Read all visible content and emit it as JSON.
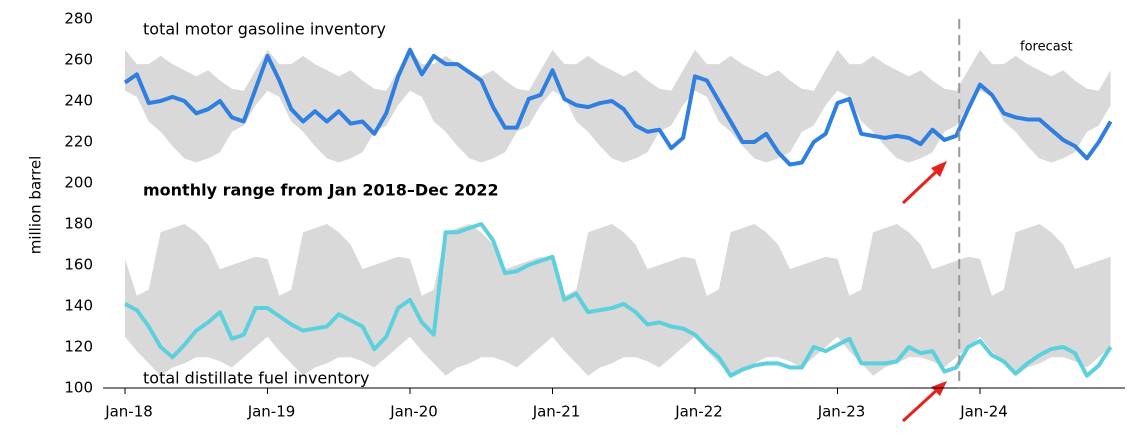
{
  "chart_data": {
    "type": "line",
    "ylabel": "million barrel",
    "ylim": [
      100,
      280
    ],
    "yticks": [
      100,
      120,
      140,
      160,
      180,
      200,
      220,
      240,
      260,
      280
    ],
    "grid": false,
    "categories": [
      "Jan-18",
      null,
      null,
      null,
      null,
      null,
      null,
      null,
      null,
      null,
      null,
      null,
      "Jan-19",
      null,
      null,
      null,
      null,
      null,
      null,
      null,
      null,
      null,
      null,
      null,
      "Jan-20",
      null,
      null,
      null,
      null,
      null,
      null,
      null,
      null,
      null,
      null,
      null,
      "Jan-21",
      null,
      null,
      null,
      null,
      null,
      null,
      null,
      null,
      null,
      null,
      null,
      "Jan-22",
      null,
      null,
      null,
      null,
      null,
      null,
      null,
      null,
      null,
      null,
      null,
      "Jan-23",
      null,
      null,
      null,
      null,
      null,
      null,
      null,
      null,
      null,
      null,
      null,
      "Jan-24",
      null,
      null,
      null,
      null,
      null,
      null,
      null,
      null,
      null,
      null,
      null
    ],
    "series": [
      {
        "name": "total motor gasoline inventory",
        "color": "#2f7fe0",
        "label_color": "#3ab0dc",
        "values": [
          249,
          253,
          239,
          240,
          242,
          240,
          234,
          236,
          240,
          232,
          230,
          246,
          262,
          250,
          236,
          230,
          235,
          230,
          235,
          229,
          230,
          224,
          234,
          252,
          265,
          253,
          262,
          258,
          258,
          254,
          250,
          237,
          227,
          227,
          241,
          243,
          255,
          241,
          238,
          237,
          239,
          240,
          236,
          228,
          225,
          226,
          217,
          222,
          252,
          250,
          240,
          230,
          220,
          220,
          224,
          215,
          209,
          210,
          220,
          224,
          239,
          241,
          224,
          223,
          222,
          223,
          222,
          219,
          226,
          221,
          223,
          236,
          248,
          243,
          234,
          232,
          231,
          231,
          226,
          221,
          218,
          212,
          220,
          230
        ]
      },
      {
        "name": "total distillate fuel inventory",
        "color": "#5dd0de",
        "label_color": "#5dd0de",
        "values": [
          141,
          138,
          130,
          120,
          115,
          121,
          128,
          132,
          137,
          124,
          126,
          139,
          139,
          135,
          131,
          128,
          129,
          130,
          136,
          133,
          130,
          119,
          125,
          139,
          143,
          132,
          126,
          176,
          176,
          178,
          180,
          172,
          156,
          157,
          160,
          162,
          164,
          143,
          146,
          137,
          138,
          139,
          141,
          137,
          131,
          132,
          130,
          129,
          126,
          120,
          115,
          106,
          109,
          111,
          112,
          112,
          110,
          110,
          120,
          118,
          121,
          124,
          112,
          112,
          112,
          113,
          120,
          117,
          118,
          108,
          110,
          120,
          123,
          116,
          113,
          107,
          112,
          116,
          119,
          120,
          117,
          106,
          111,
          120
        ]
      }
    ],
    "range": {
      "label": "monthly range from Jan 2018–Dec 2022",
      "color": "#d9d9d9",
      "bands": [
        {
          "high": [
            265,
            258,
            258,
            262,
            258,
            255,
            252,
            255,
            250,
            246,
            245,
            255
          ],
          "low": [
            245,
            242,
            230,
            225,
            218,
            212,
            210,
            212,
            215,
            225,
            228,
            238
          ]
        },
        {
          "high": [
            163,
            145,
            148,
            176,
            178,
            180,
            176,
            170,
            158,
            160,
            162,
            164
          ],
          "low": [
            125,
            118,
            112,
            106,
            110,
            112,
            115,
            115,
            113,
            110,
            115,
            120
          ]
        }
      ]
    },
    "annotation": {
      "text": "forecast",
      "x": 70
    }
  }
}
